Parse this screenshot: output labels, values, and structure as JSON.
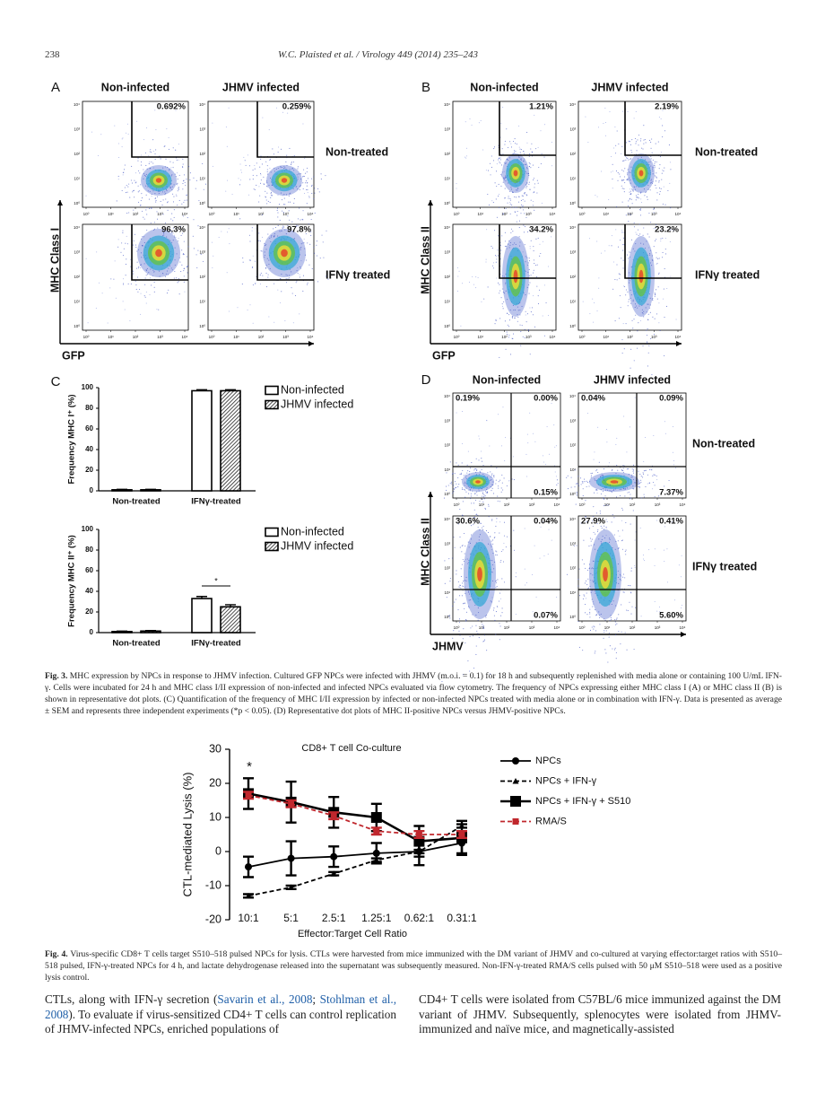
{
  "header": {
    "page": "238",
    "citation": "W.C. Plaisted et al. / Virology 449 (2014) 235–243"
  },
  "fig3": {
    "flow_axis_ticks": [
      "10⁰",
      "10¹",
      "10²",
      "10³",
      "10⁴"
    ],
    "panels": [
      {
        "label": "A",
        "columns": [
          "Non-infected",
          "JHMV infected"
        ],
        "rows": [
          "Non-treated",
          "IFNγ treated"
        ],
        "y_axis": "MHC Class I",
        "x_axis": "GFP",
        "percentages": [
          [
            "0.692%",
            "0.259%"
          ],
          [
            "96.3%",
            "97.8%"
          ]
        ]
      },
      {
        "label": "B",
        "columns": [
          "Non-infected",
          "JHMV infected"
        ],
        "rows": [
          "Non-treated",
          "IFNγ treated"
        ],
        "y_axis": "MHC Class II",
        "x_axis": "GFP",
        "percentages": [
          [
            "1.21%",
            "2.19%"
          ],
          [
            "34.2%",
            "23.2%"
          ]
        ]
      },
      {
        "label": "D",
        "columns": [
          "Non-infected",
          "JHMV infected"
        ],
        "rows": [
          "Non-treated",
          "IFNγ treated"
        ],
        "y_axis": "MHC Class II",
        "x_axis": "JHMV",
        "quadrants": [
          [
            [
              "0.19%",
              "0.00%",
              "0.15%"
            ],
            [
              "0.04%",
              "0.09%",
              "7.37%"
            ]
          ],
          [
            [
              "30.6%",
              "0.04%",
              "0.07%"
            ],
            [
              "27.9%",
              "0.41%",
              "5.60%"
            ]
          ]
        ]
      }
    ],
    "panel_c": {
      "label": "C",
      "charts": [
        {
          "type": "bar",
          "y_label": "Frequency  MHC I⁺ (%)",
          "categories": [
            "Non-treated",
            "IFNγ-treated"
          ],
          "series": [
            {
              "name": "Non-infected",
              "color": "#ffffff",
              "values": [
                1,
                97
              ],
              "errors": [
                0.5,
                1
              ]
            },
            {
              "name": "JHMV infected",
              "color": "#333333",
              "pattern": "hatch",
              "values": [
                1,
                97
              ],
              "errors": [
                0.5,
                1
              ]
            }
          ],
          "ylim": [
            0,
            100
          ],
          "yticks": [
            0,
            20,
            40,
            60,
            80,
            100
          ]
        },
        {
          "type": "bar",
          "y_label": "Frequency  MHC II⁺ (%)",
          "categories": [
            "Non-treated",
            "IFNγ-treated"
          ],
          "series": [
            {
              "name": "Non-infected",
              "color": "#ffffff",
              "values": [
                1,
                33
              ],
              "errors": [
                0.5,
                2
              ]
            },
            {
              "name": "JHMV infected",
              "color": "#333333",
              "pattern": "hatch",
              "values": [
                1.5,
                25
              ],
              "errors": [
                0.5,
                2
              ]
            }
          ],
          "ylim": [
            0,
            100
          ],
          "yticks": [
            0,
            20,
            40,
            60,
            80,
            100
          ],
          "annotation": "*"
        }
      ]
    },
    "caption": {
      "label": "Fig. 3.",
      "text": "MHC expression by NPCs in response to JHMV infection. Cultured GFP NPCs were infected with JHMV (m.o.i. = 0.1) for 18 h and subsequently replenished with media alone or containing 100 U/mL IFN-γ. Cells were incubated for 24 h and MHC class I/II expression of non-infected and infected NPCs evaluated via flow cytometry. The frequency of NPCs expressing either MHC class I (A) or MHC class II (B) is shown in representative dot plots. (C) Quantification of the frequency of MHC I/II expression by infected or non-infected NPCs treated with media alone or in combination with IFN-γ. Data is presented as average ± SEM and represents three independent experiments (*p < 0.05). (D) Representative dot plots of MHC II-positive NPCs versus JHMV-positive NPCs."
    }
  },
  "fig4": {
    "chart_data": {
      "type": "line",
      "title": "CD8+ T cell Co-culture",
      "y_label": "CTL-mediated  Lysis  (%)",
      "x_label": "Effector:Target Cell Ratio",
      "categories": [
        "10:1",
        "5:1",
        "2.5:1",
        "1.25:1",
        "0.62:1",
        "0.31:1"
      ],
      "series": [
        {
          "name": "NPCs",
          "color": "#000000",
          "marker": "circle",
          "dash": false,
          "values": [
            -4.5,
            -2,
            -1.5,
            -0.5,
            0,
            2.5
          ],
          "errors": [
            3,
            5,
            3,
            3,
            4,
            3
          ]
        },
        {
          "name": "NPCs + IFN-γ",
          "color": "#000000",
          "marker": "triangle",
          "dash": true,
          "values": [
            -13,
            -10.5,
            -6.5,
            -2.5,
            0,
            7.5
          ],
          "errors": [
            0.5,
            0.5,
            0.5,
            0.5,
            0.5,
            0.5
          ]
        },
        {
          "name": "NPCs + IFN-γ + S510",
          "color": "#000000",
          "marker": "square",
          "dash": false,
          "values": [
            17,
            14.5,
            11.5,
            10,
            3,
            4
          ],
          "errors": [
            4.5,
            6,
            4.5,
            4,
            4.5,
            5
          ]
        },
        {
          "name": "RMA/S",
          "color": "#c0272d",
          "marker": "small-square",
          "dash": true,
          "values": [
            16.5,
            14,
            10.5,
            6,
            5,
            5
          ],
          "errors": [
            1,
            1,
            1,
            1,
            1,
            1
          ]
        }
      ],
      "ylim": [
        -20,
        30
      ],
      "yticks": [
        -20,
        -10,
        0,
        10,
        20,
        30
      ],
      "annotation": "*"
    },
    "caption": {
      "label": "Fig. 4.",
      "text": "Virus-specific CD8+ T cells target S510–518 pulsed NPCs for lysis. CTLs were harvested from mice immunized with the DM variant of JHMV and co-cultured at varying effector:target ratios with S510–518 pulsed, IFN-γ-treated NPCs for 4 h, and lactate dehydrogenase released into the supernatant was subsequently measured. Non-IFN-γ-treated RMA/S cells pulsed with 50 μM S510–518 were used as a positive lysis control."
    }
  },
  "body": {
    "left": [
      "CTLs, along with IFN-γ secretion (",
      "Savarin et al., 2008",
      "; ",
      "Stohlman et al., 2008",
      "). To evaluate if virus-sensitized CD4+ T cells can control replication of JHMV-infected NPCs, enriched populations of"
    ],
    "right": "CD4+ T cells were isolated from C57BL/6 mice immunized against the DM variant of JHMV. Subsequently, splenocytes were isolated from JHMV-immunized and naïve mice, and magnetically-assisted"
  }
}
